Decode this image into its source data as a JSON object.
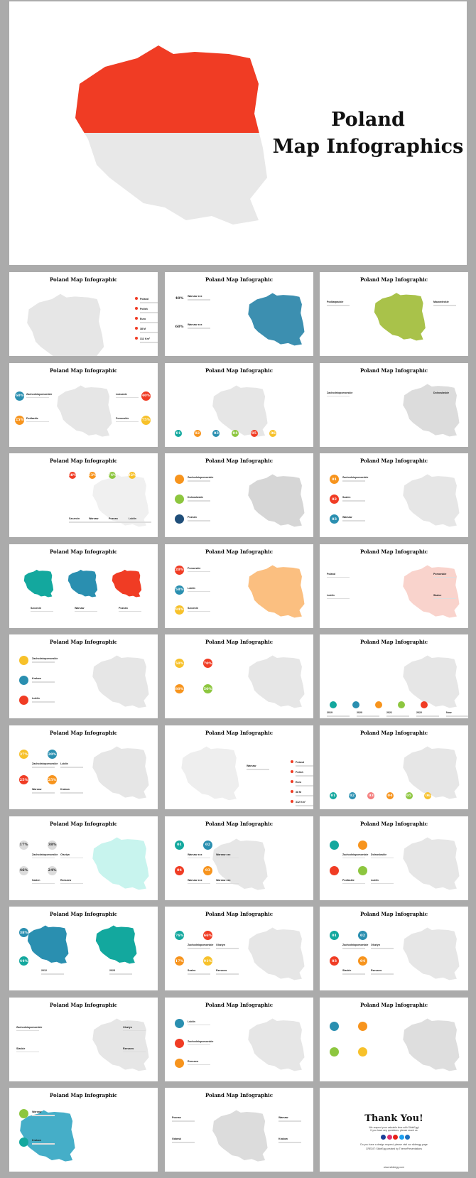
{
  "cover": {
    "title_line1": "Poland",
    "title_line2": "Map Infographics",
    "top_color": "#f03c24",
    "bottom_color": "#e8e8e8"
  },
  "slides": [
    {
      "title": "Poland Map Infographic",
      "map_color": "#e6e6e6",
      "badges": [],
      "labels": [
        "Poland",
        "Polish",
        "Euro",
        "38 M",
        "312 Km²"
      ],
      "accent": "#f03c24"
    },
    {
      "title": "Poland Map Infographic",
      "map_color": "#3c8fb0",
      "badges": [
        {
          "text": "40%",
          "color": "#ffffff"
        },
        {
          "text": "60%",
          "color": "#ffffff"
        }
      ],
      "labels": [
        "Warsaw xxx",
        "Warsaw xxx"
      ]
    },
    {
      "title": "Poland Map Infographic",
      "map_color": "#a9c24a",
      "badges": [],
      "labels": [
        "Podkarpackie",
        "Mazowieckie"
      ]
    },
    {
      "title": "Poland Map Infographic",
      "map_color": "#e6e6e6",
      "badges": [
        {
          "text": "60%",
          "color": "#2a8fb0"
        },
        {
          "text": "40%",
          "color": "#f03c24"
        },
        {
          "text": "25%",
          "color": "#f7941d"
        },
        {
          "text": "75%",
          "color": "#f7c12a"
        }
      ],
      "labels": [
        "Zachodniopomorskie",
        "Lubuskie",
        "Podlaskie",
        "Pomorskie"
      ]
    },
    {
      "title": "Poland Map Infographic",
      "map_color": "#e6e6e6",
      "badges": [
        {
          "text": "01",
          "color": "#13a89e"
        },
        {
          "text": "02",
          "color": "#f7941d"
        },
        {
          "text": "03",
          "color": "#2a8fb0"
        },
        {
          "text": "04",
          "color": "#8dc63f"
        },
        {
          "text": "05",
          "color": "#f03c24"
        },
        {
          "text": "06",
          "color": "#f7c12a"
        }
      ],
      "labels": []
    },
    {
      "title": "Poland Map Infographic",
      "map_color": "#dcdcdc",
      "badges": [],
      "labels": [
        "Zachodniopomorskie",
        "Dolnoslaskie"
      ]
    },
    {
      "title": "Poland Map Infographic",
      "map_color": "#f0f0f0",
      "badges": [
        {
          "text": "38%",
          "color": "#f03c24"
        },
        {
          "text": "53%",
          "color": "#f7941d"
        },
        {
          "text": "74%",
          "color": "#8dc63f"
        },
        {
          "text": "92%",
          "color": "#f7c12a"
        }
      ],
      "labels": [
        "Szczecin",
        "Warsaw",
        "Poznan",
        "Lublin"
      ]
    },
    {
      "title": "Poland Map Infographic",
      "map_color": "#d6d6d6",
      "badges": [
        {
          "text": "",
          "color": "#f7941d"
        },
        {
          "text": "",
          "color": "#8dc63f"
        },
        {
          "text": "",
          "color": "#1f4e79"
        }
      ],
      "labels": [
        "Zachodniopomorskie",
        "Dolnoslaskie",
        "Poznan"
      ]
    },
    {
      "title": "Poland Map Infographic",
      "map_color": "#e6e6e6",
      "badges": [
        {
          "text": "01",
          "color": "#f7941d"
        },
        {
          "text": "02",
          "color": "#f03c24"
        },
        {
          "text": "03",
          "color": "#2a8fb0"
        }
      ],
      "labels": [
        "Zachodniopomorskie",
        "Szalen",
        "Warsaw"
      ]
    },
    {
      "title": "Poland Map Infographic",
      "map_color": "#13a89e",
      "badges": [],
      "labels": [
        "Szczecin",
        "Warsaw",
        "Poznan"
      ]
    },
    {
      "title": "Poland Map Infographic",
      "map_color": "#fbbf80",
      "badges": [
        {
          "text": "20%",
          "color": "#f03c24"
        },
        {
          "text": "58%",
          "color": "#2a8fb0"
        },
        {
          "text": "84%",
          "color": "#f7c12a"
        }
      ],
      "labels": [
        "Pomorskie",
        "Lublin",
        "Szczecin"
      ]
    },
    {
      "title": "Poland Map Infographic",
      "map_color": "#f9d3cc",
      "badges": [],
      "labels": [
        "Poland",
        "Pomorskie",
        "Lublin",
        "Skalce"
      ]
    },
    {
      "title": "Poland Map Infographic",
      "map_color": "#e6e6e6",
      "badges": [
        {
          "text": "",
          "color": "#f7c12a"
        },
        {
          "text": "",
          "color": "#2a8fb0"
        },
        {
          "text": "",
          "color": "#f03c24"
        }
      ],
      "labels": [
        "Zachodniopomorskie",
        "Krakow",
        "Lublin"
      ]
    },
    {
      "title": "Poland Map Infographic",
      "map_color": "#e6e6e6",
      "badges": [
        {
          "text": "50%",
          "color": "#f7c12a"
        },
        {
          "text": "70%",
          "color": "#f03c24"
        },
        {
          "text": "80%",
          "color": "#f7941d"
        },
        {
          "text": "50%",
          "color": "#8dc63f"
        }
      ],
      "labels": []
    },
    {
      "title": "Poland Map Infographic",
      "map_color": "#e6e6e6",
      "badges": [
        {
          "text": "",
          "color": "#13a89e"
        },
        {
          "text": "",
          "color": "#2a8fb0"
        },
        {
          "text": "",
          "color": "#f7941d"
        },
        {
          "text": "",
          "color": "#8dc63f"
        },
        {
          "text": "",
          "color": "#f03c24"
        }
      ],
      "labels": [
        "2019",
        "2020",
        "2021",
        "2022",
        "Now"
      ]
    },
    {
      "title": "Poland Map Infographic",
      "map_color": "#e6e6e6",
      "badges": [
        {
          "text": "37%",
          "color": "#f7c12a"
        },
        {
          "text": "20%",
          "color": "#2a8fb0"
        },
        {
          "text": "25%",
          "color": "#f03c24"
        },
        {
          "text": "25%",
          "color": "#f7941d"
        }
      ],
      "labels": [
        "Zachodniopomorskie",
        "Lublin",
        "Warsaw",
        "Krakow"
      ]
    },
    {
      "title": "Poland Map Infographic",
      "map_color": "#eeeeee",
      "badges": [],
      "labels": [
        "Warsaw",
        "Poland",
        "Polish",
        "Euro",
        "38 M",
        "312 Km²"
      ],
      "accent": "#f03c24"
    },
    {
      "title": "Poland Map Infographic",
      "map_color": "#e6e6e6",
      "badges": [
        {
          "text": "01",
          "color": "#13a89e"
        },
        {
          "text": "02",
          "color": "#2a8fb0"
        },
        {
          "text": "03",
          "color": "#f47b7b"
        },
        {
          "text": "04",
          "color": "#f7941d"
        },
        {
          "text": "05",
          "color": "#8dc63f"
        },
        {
          "text": "06",
          "color": "#f7c12a"
        }
      ],
      "labels": []
    },
    {
      "title": "Poland Map Infographic",
      "map_color": "#c8f4ee",
      "badges": [
        {
          "text": "17%",
          "color": "#dcdcdc"
        },
        {
          "text": "38%",
          "color": "#dcdcdc"
        },
        {
          "text": "46%",
          "color": "#dcdcdc"
        },
        {
          "text": "24%",
          "color": "#dcdcdc"
        }
      ],
      "labels": [
        "Zachodniopomorskie",
        "Olsztyn",
        "Szalen",
        "Rzeszow"
      ]
    },
    {
      "title": "Poland Map Infographic",
      "map_color": "#e6e6e6",
      "badges": [
        {
          "text": "01",
          "color": "#13a89e"
        },
        {
          "text": "02",
          "color": "#2a8fb0"
        },
        {
          "text": "04",
          "color": "#f03c24"
        },
        {
          "text": "03",
          "color": "#f7941d"
        }
      ],
      "labels": [
        "Warsaw xxx",
        "Warsaw xxx",
        "Warsaw xxx",
        "Warsaw xxx"
      ]
    },
    {
      "title": "Poland Map Infographic",
      "map_color": "#e6e6e6",
      "badges": [
        {
          "text": "",
          "color": "#13a89e"
        },
        {
          "text": "",
          "color": "#f7941d"
        },
        {
          "text": "",
          "color": "#f03c24"
        },
        {
          "text": "",
          "color": "#8dc63f"
        }
      ],
      "labels": [
        "Zachodniopomorskie",
        "Dolnoslaskie",
        "Podlaskie",
        "Lublin"
      ]
    },
    {
      "title": "Poland Map Infographic",
      "map_color": "#2a8fb0",
      "badges": [
        {
          "text": "38%",
          "color": "#2a8fb0"
        },
        {
          "text": "44%",
          "color": "#13a89e"
        }
      ],
      "labels": [
        "2012",
        "2023"
      ]
    },
    {
      "title": "Poland Map Infographic",
      "map_color": "#e6e6e6",
      "badges": [
        {
          "text": "76%",
          "color": "#13a89e"
        },
        {
          "text": "66%",
          "color": "#f03c24"
        },
        {
          "text": "17%",
          "color": "#f7941d"
        },
        {
          "text": "91%",
          "color": "#f7c12a"
        }
      ],
      "labels": [
        "Zachodniopomorskie",
        "Olsztyn",
        "Szalen",
        "Rzeszow"
      ]
    },
    {
      "title": "Poland Map Infographic",
      "map_color": "#e6e6e6",
      "badges": [
        {
          "text": "01",
          "color": "#13a89e"
        },
        {
          "text": "02",
          "color": "#2a8fb0"
        },
        {
          "text": "03",
          "color": "#f03c24"
        },
        {
          "text": "04",
          "color": "#f7941d"
        }
      ],
      "labels": [
        "Zachodniopomorskie",
        "Olsztyn",
        "Slaskie",
        "Rzeszow"
      ]
    },
    {
      "title": "Poland Map Infographic",
      "map_color": "#e6e6e6",
      "badges": [],
      "labels": [
        "Zachodniopomorskie",
        "Olsztyn",
        "Slaskie",
        "Rzeszow"
      ]
    },
    {
      "title": "Poland Map Infographic",
      "map_color": "#e6e6e6",
      "badges": [
        {
          "text": "",
          "color": "#2a8fb0"
        },
        {
          "text": "",
          "color": "#f03c24"
        },
        {
          "text": "",
          "color": "#f7941d"
        }
      ],
      "labels": [
        "Lublin",
        "Zachodniopomorskie",
        "Rzeszow"
      ]
    },
    {
      "title": "Poland Map Infographic",
      "map_color": "#dedede",
      "badges": [
        {
          "text": "",
          "color": "#2a8fb0"
        },
        {
          "text": "",
          "color": "#f7941d"
        },
        {
          "text": "",
          "color": "#8dc63f"
        },
        {
          "text": "",
          "color": "#f7c12a"
        }
      ],
      "labels": []
    },
    {
      "title": "Poland Map Infographic",
      "map_color": "#45aec8",
      "badges": [
        {
          "text": "",
          "color": "#8dc63f"
        },
        {
          "text": "",
          "color": "#13a89e"
        }
      ],
      "labels": [
        "Warsaw",
        "Krakow"
      ]
    },
    {
      "title": "Poland Map Infographic",
      "map_color": "#dcdcdc",
      "badges": [],
      "labels": [
        "Poznan",
        "Warsaw",
        "Gdansk",
        "Krakow"
      ]
    },
    {
      "title": "Thank You!",
      "thank_you": true,
      "lines": [
        "We respect your valuable time with SlideEgg!",
        "If you have any questions, please reach us",
        "Do you have a design request, please visit our slideegg page",
        "CREDIT: SlideEgg created by ThemePresentations",
        "www.slideegg.com"
      ],
      "social_colors": [
        "#1b3f99",
        "#e1306c",
        "#e62117",
        "#1da1f2",
        "#1d6fbf"
      ]
    }
  ]
}
